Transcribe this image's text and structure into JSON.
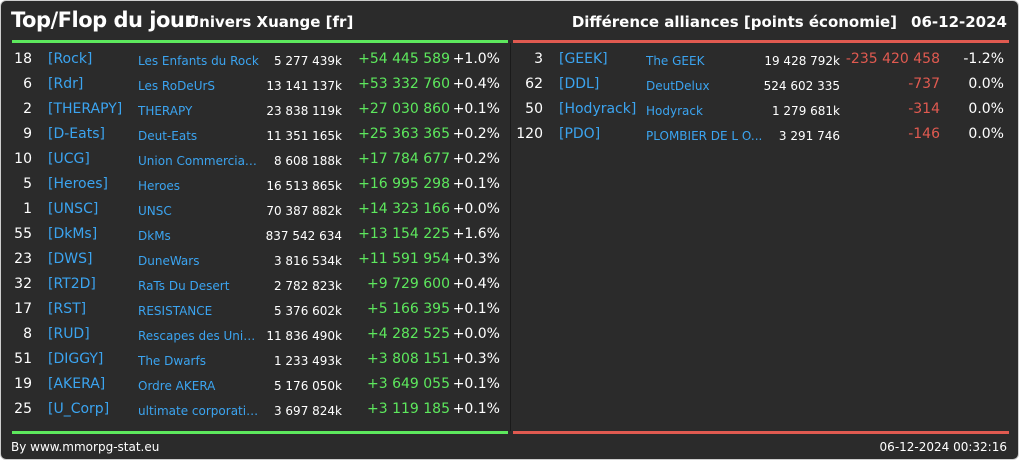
{
  "header": {
    "title": "Top/Flop du jour",
    "subtitle": "Univers Xuange [fr]",
    "category": "Différence alliances [points économie]",
    "date": "06-12-2024"
  },
  "colors": {
    "gain": "#5de85d",
    "loss": "#e05a50",
    "tag": "#3ba4f0",
    "background": "#2b2b2b"
  },
  "top": [
    {
      "rank": "18",
      "tag": "[Rock]",
      "name": "Les Enfants du Rock",
      "points": "5 277 439k",
      "diff": "+54 445 589",
      "pct": "+1.0%"
    },
    {
      "rank": "6",
      "tag": "[Rdr]",
      "name": "Les RoDeUrS",
      "points": "13 141 137k",
      "diff": "+53 332 760",
      "pct": "+0.4%"
    },
    {
      "rank": "2",
      "tag": "[THERAPY]",
      "name": "THERAPY",
      "points": "23 838 119k",
      "diff": "+27 030 860",
      "pct": "+0.1%"
    },
    {
      "rank": "9",
      "tag": "[D-Eats]",
      "name": "Deut-Eats",
      "points": "11 351 165k",
      "diff": "+25 363 365",
      "pct": "+0.2%"
    },
    {
      "rank": "10",
      "tag": "[UCG]",
      "name": "Union Commerciale...",
      "points": "8 608 188k",
      "diff": "+17 784 677",
      "pct": "+0.2%"
    },
    {
      "rank": "5",
      "tag": "[Heroes]",
      "name": "Heroes",
      "points": "16 513 865k",
      "diff": "+16 995 298",
      "pct": "+0.1%"
    },
    {
      "rank": "1",
      "tag": "[UNSC]",
      "name": "UNSC",
      "points": "70 387 882k",
      "diff": "+14 323 166",
      "pct": "+0.0%"
    },
    {
      "rank": "55",
      "tag": "[DkMs]",
      "name": "DkMs",
      "points": "837 542 634",
      "diff": "+13 154 225",
      "pct": "+1.6%"
    },
    {
      "rank": "23",
      "tag": "[DWS]",
      "name": "DuneWars",
      "points": "3 816 534k",
      "diff": "+11 591 954",
      "pct": "+0.3%"
    },
    {
      "rank": "32",
      "tag": "[RT2D]",
      "name": "RaTs Du Desert",
      "points": "2 782 823k",
      "diff": "+9 729 600",
      "pct": "+0.4%"
    },
    {
      "rank": "17",
      "tag": "[RST]",
      "name": "RESISTANCE",
      "points": "5 376 602k",
      "diff": "+5 166 395",
      "pct": "+0.1%"
    },
    {
      "rank": "8",
      "tag": "[RUD]",
      "name": "Rescapes des Univ...",
      "points": "11 836 490k",
      "diff": "+4 282 525",
      "pct": "+0.0%"
    },
    {
      "rank": "51",
      "tag": "[DIGGY]",
      "name": "The Dwarfs",
      "points": "1 233 493k",
      "diff": "+3 808 151",
      "pct": "+0.3%"
    },
    {
      "rank": "19",
      "tag": "[AKERA]",
      "name": "Ordre AKERA",
      "points": "5 176 050k",
      "diff": "+3 649 055",
      "pct": "+0.1%"
    },
    {
      "rank": "25",
      "tag": "[U_Corp]",
      "name": "ultimate corporation",
      "points": "3 697 824k",
      "diff": "+3 119 185",
      "pct": "+0.1%"
    }
  ],
  "flop": [
    {
      "rank": "3",
      "tag": "[GEEK]",
      "name": "The GEEK",
      "points": "19 428 792k",
      "diff": "-235 420 458",
      "pct": "-1.2%"
    },
    {
      "rank": "62",
      "tag": "[DDL]",
      "name": "DeutDelux",
      "points": "524 602 335",
      "diff": "-737",
      "pct": "0.0%"
    },
    {
      "rank": "50",
      "tag": "[Hodyrack]",
      "name": "Hodyrack",
      "points": "1 279 681k",
      "diff": "-314",
      "pct": "0.0%"
    },
    {
      "rank": "120",
      "tag": "[PDO]",
      "name": "PLOMBIER DE L O...",
      "points": "3 291 746",
      "diff": "-146",
      "pct": "0.0%"
    }
  ],
  "footer": {
    "source": "By www.mmorpg-stat.eu",
    "timestamp": "06-12-2024 00:32:16"
  }
}
